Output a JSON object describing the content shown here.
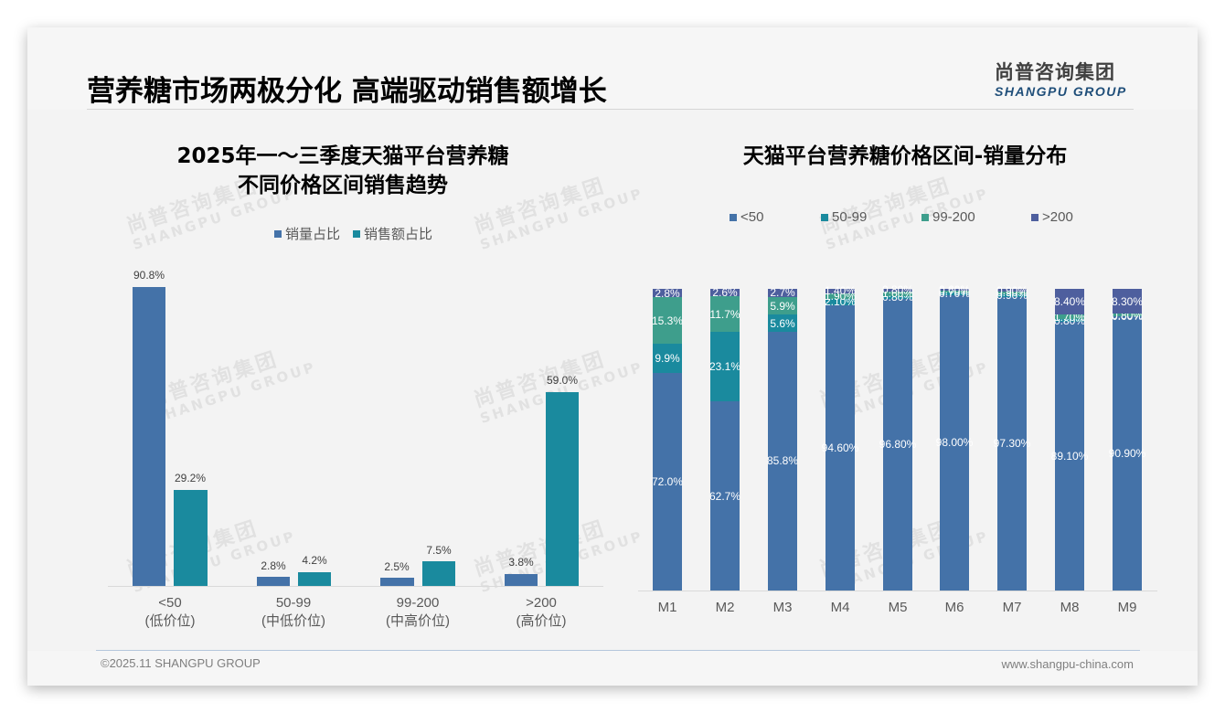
{
  "header": {
    "title": "营养糖市场两极分化 高端驱动销售额增长",
    "logo_cn": "尚普咨询集团",
    "logo_en": "SHANGPU GROUP"
  },
  "watermark": {
    "cn": "尚普咨询集团",
    "en": "SHANGPU GROUP"
  },
  "left_chart": {
    "title_line1": "2025年一～三季度天猫平台营养糖",
    "title_line2": "不同价格区间销售趋势",
    "legend": [
      {
        "label": "销量占比",
        "color": "#4472a8"
      },
      {
        "label": "销售额占比",
        "color": "#1a8a9e"
      }
    ],
    "categories": [
      {
        "line1": "<50",
        "line2": "(低价位)",
        "vol": "90.8%",
        "amt": "29.2%"
      },
      {
        "line1": "50-99",
        "line2": "(中低价位)",
        "vol": "2.8%",
        "amt": "4.2%"
      },
      {
        "line1": "99-200",
        "line2": "(中高价位)",
        "vol": "2.5%",
        "amt": "7.5%"
      },
      {
        "line1": ">200",
        "line2": "(高价位)",
        "vol": "3.8%",
        "amt": "59.0%"
      }
    ]
  },
  "right_chart": {
    "title": "天猫平台营养糖价格区间-销量分布",
    "legend": [
      {
        "label": "<50",
        "color": "#4472a8"
      },
      {
        "label": "50-99",
        "color": "#1a8a9e"
      },
      {
        "label": "99-200",
        "color": "#3e9e8c"
      },
      {
        "label": ">200",
        "color": "#4e5f9e"
      }
    ],
    "months": [
      {
        "m": "M1",
        "a": "72.0%",
        "b": "9.9%",
        "c": "15.3%",
        "d": "2.8%"
      },
      {
        "m": "M2",
        "a": "62.7%",
        "b": "23.1%",
        "c": "11.7%",
        "d": "2.6%"
      },
      {
        "m": "M3",
        "a": "85.8%",
        "b": "5.6%",
        "c": "5.9%",
        "d": "2.7%"
      },
      {
        "m": "M4",
        "a": "94.60%",
        "b": "2.10%",
        "c": "1.90%",
        "d": "1.40%"
      },
      {
        "m": "M5",
        "a": "96.80%",
        "b": "0.80%",
        "c": "1.60%",
        "d": "0.80%"
      },
      {
        "m": "M6",
        "a": "98.00%",
        "b": "0.70%",
        "c": "0.70%",
        "d": "0.60%"
      },
      {
        "m": "M7",
        "a": "97.30%",
        "b": "0.90%",
        "c": "0.90%",
        "d": "0.90%"
      },
      {
        "m": "M8",
        "a": "89.10%",
        "b": "0.80%",
        "c": "1.70%",
        "d": "8.40%"
      },
      {
        "m": "M9",
        "a": "90.90%",
        "b": "0.00%",
        "c": "0.80%",
        "d": "8.30%"
      }
    ]
  },
  "footer": {
    "left": "©2025.11 SHANGPU GROUP",
    "right": "www.shangpu-china.com"
  },
  "chart_data": [
    {
      "type": "bar",
      "title": "2025年一～三季度天猫平台营养糖不同价格区间销售趋势",
      "categories": [
        "<50 (低价位)",
        "50-99 (中低价位)",
        "99-200 (中高价位)",
        ">200 (高价位)"
      ],
      "series": [
        {
          "name": "销量占比",
          "values": [
            90.8,
            2.8,
            2.5,
            3.8
          ]
        },
        {
          "name": "销售额占比",
          "values": [
            29.2,
            4.2,
            7.5,
            59.0
          ]
        }
      ],
      "xlabel": "",
      "ylabel": "",
      "unit": "%",
      "legend_position": "top",
      "grid": false
    },
    {
      "type": "bar",
      "stacked": true,
      "title": "天猫平台营养糖价格区间-销量分布",
      "categories": [
        "M1",
        "M2",
        "M3",
        "M4",
        "M5",
        "M6",
        "M7",
        "M8",
        "M9"
      ],
      "series": [
        {
          "name": "<50",
          "values": [
            72.0,
            62.7,
            85.8,
            94.6,
            96.8,
            98.0,
            97.3,
            89.1,
            90.9
          ]
        },
        {
          "name": "50-99",
          "values": [
            9.9,
            23.1,
            5.6,
            2.1,
            0.8,
            0.7,
            0.9,
            0.8,
            0.0
          ]
        },
        {
          "name": "99-200",
          "values": [
            15.3,
            11.7,
            5.9,
            1.9,
            1.6,
            0.7,
            0.9,
            1.7,
            0.8
          ]
        },
        {
          "name": ">200",
          "values": [
            2.8,
            2.6,
            2.7,
            1.4,
            0.8,
            0.6,
            0.9,
            8.4,
            8.3
          ]
        }
      ],
      "ylim": [
        0,
        100
      ],
      "unit": "%",
      "legend_position": "top",
      "grid": false
    }
  ]
}
